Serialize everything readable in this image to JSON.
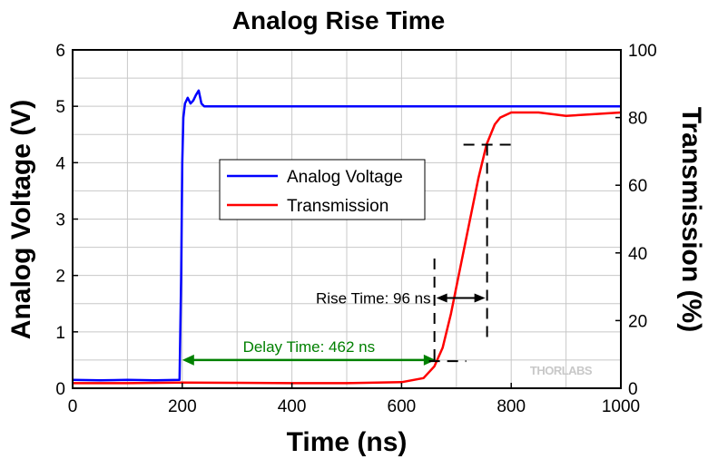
{
  "chart_data": {
    "type": "line",
    "title": "Analog Rise Time",
    "xlabel": "Time (ns)",
    "ylabel": "Analog Voltage (V)",
    "y2label": "Transmission (%)",
    "xlim": [
      0,
      1000
    ],
    "ylim": [
      0,
      6
    ],
    "y2lim": [
      0,
      100
    ],
    "xticks": [
      "0",
      "200",
      "400",
      "600",
      "800",
      "1000"
    ],
    "yticks": [
      "0",
      "1",
      "2",
      "3",
      "4",
      "5",
      "6"
    ],
    "y2ticks": [
      "0",
      "20",
      "40",
      "60",
      "80",
      "100"
    ],
    "grid": true,
    "legend_position": "center-left",
    "series": [
      {
        "name": "Analog Voltage",
        "axis": "left",
        "color": "#0000ff",
        "x": [
          0,
          50,
          100,
          150,
          195,
          198,
          200,
          202,
          205,
          210,
          215,
          220,
          225,
          230,
          235,
          240,
          250,
          300,
          400,
          500,
          600,
          700,
          800,
          900,
          1000
        ],
        "y": [
          0.15,
          0.14,
          0.15,
          0.14,
          0.15,
          2.0,
          4.0,
          4.8,
          5.05,
          5.15,
          5.05,
          5.1,
          5.2,
          5.28,
          5.05,
          5.0,
          5.0,
          5.0,
          5.0,
          5.0,
          5.0,
          5.0,
          5.0,
          5.0,
          5.0
        ]
      },
      {
        "name": "Transmission",
        "axis": "right",
        "color": "#ff0000",
        "x": [
          0,
          100,
          200,
          300,
          400,
          500,
          600,
          640,
          660,
          675,
          690,
          700,
          720,
          740,
          755,
          770,
          780,
          800,
          850,
          900,
          950,
          1000
        ],
        "y": [
          1.5,
          1.5,
          1.7,
          1.6,
          1.5,
          1.5,
          1.8,
          3.0,
          6.5,
          12,
          22,
          30,
          46,
          62,
          72,
          78,
          80,
          81.5,
          81.5,
          80.5,
          81,
          81.5
        ]
      }
    ],
    "annotations": {
      "delay_label": "Delay Time: 462 ns",
      "delay_color": "#008000",
      "delay_x": [
        200,
        662
      ],
      "delay_y": 0.5,
      "rise_label": "Rise Time: 96 ns",
      "rise_color": "#000000",
      "rise_x": [
        660,
        756
      ],
      "rise_y": 1.6,
      "rise_low_pct": 8,
      "rise_high_pct": 72
    },
    "watermark": "THORLABS"
  }
}
